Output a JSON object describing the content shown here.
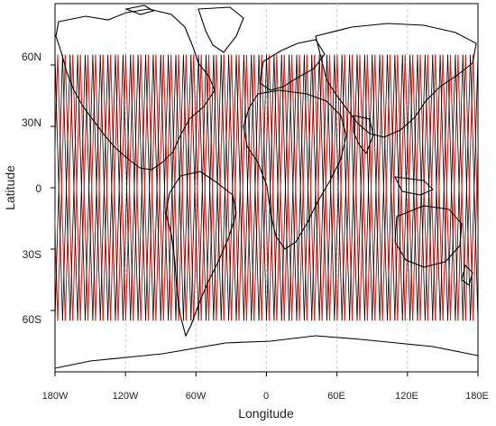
{
  "axes": {
    "xlabel": "Longitude",
    "ylabel": "Latitude",
    "x_ticks": [
      "180W",
      "120W",
      "60W",
      "0",
      "60E",
      "120E",
      "180E"
    ],
    "y_ticks": [
      "60N",
      "30N",
      "0",
      "30S",
      "60S"
    ]
  },
  "chart_data": {
    "type": "map",
    "x_range_deg": [
      -180,
      180
    ],
    "y_range_deg": [
      -90,
      90
    ],
    "coverage_band_lat_deg": [
      -65,
      65
    ],
    "track_colors": [
      "#000000",
      "#e0201b"
    ],
    "track_note_colors": {
      "black": "ascending/descending ground tracks",
      "red": "ground tracks"
    },
    "gridlines": "dashed light gray at 60° longitude intervals",
    "legend": "none"
  },
  "colors": {
    "coast": "#000000",
    "track_black": "#000000",
    "track_red": "#e0201b",
    "grid": "#c9c9c9"
  }
}
